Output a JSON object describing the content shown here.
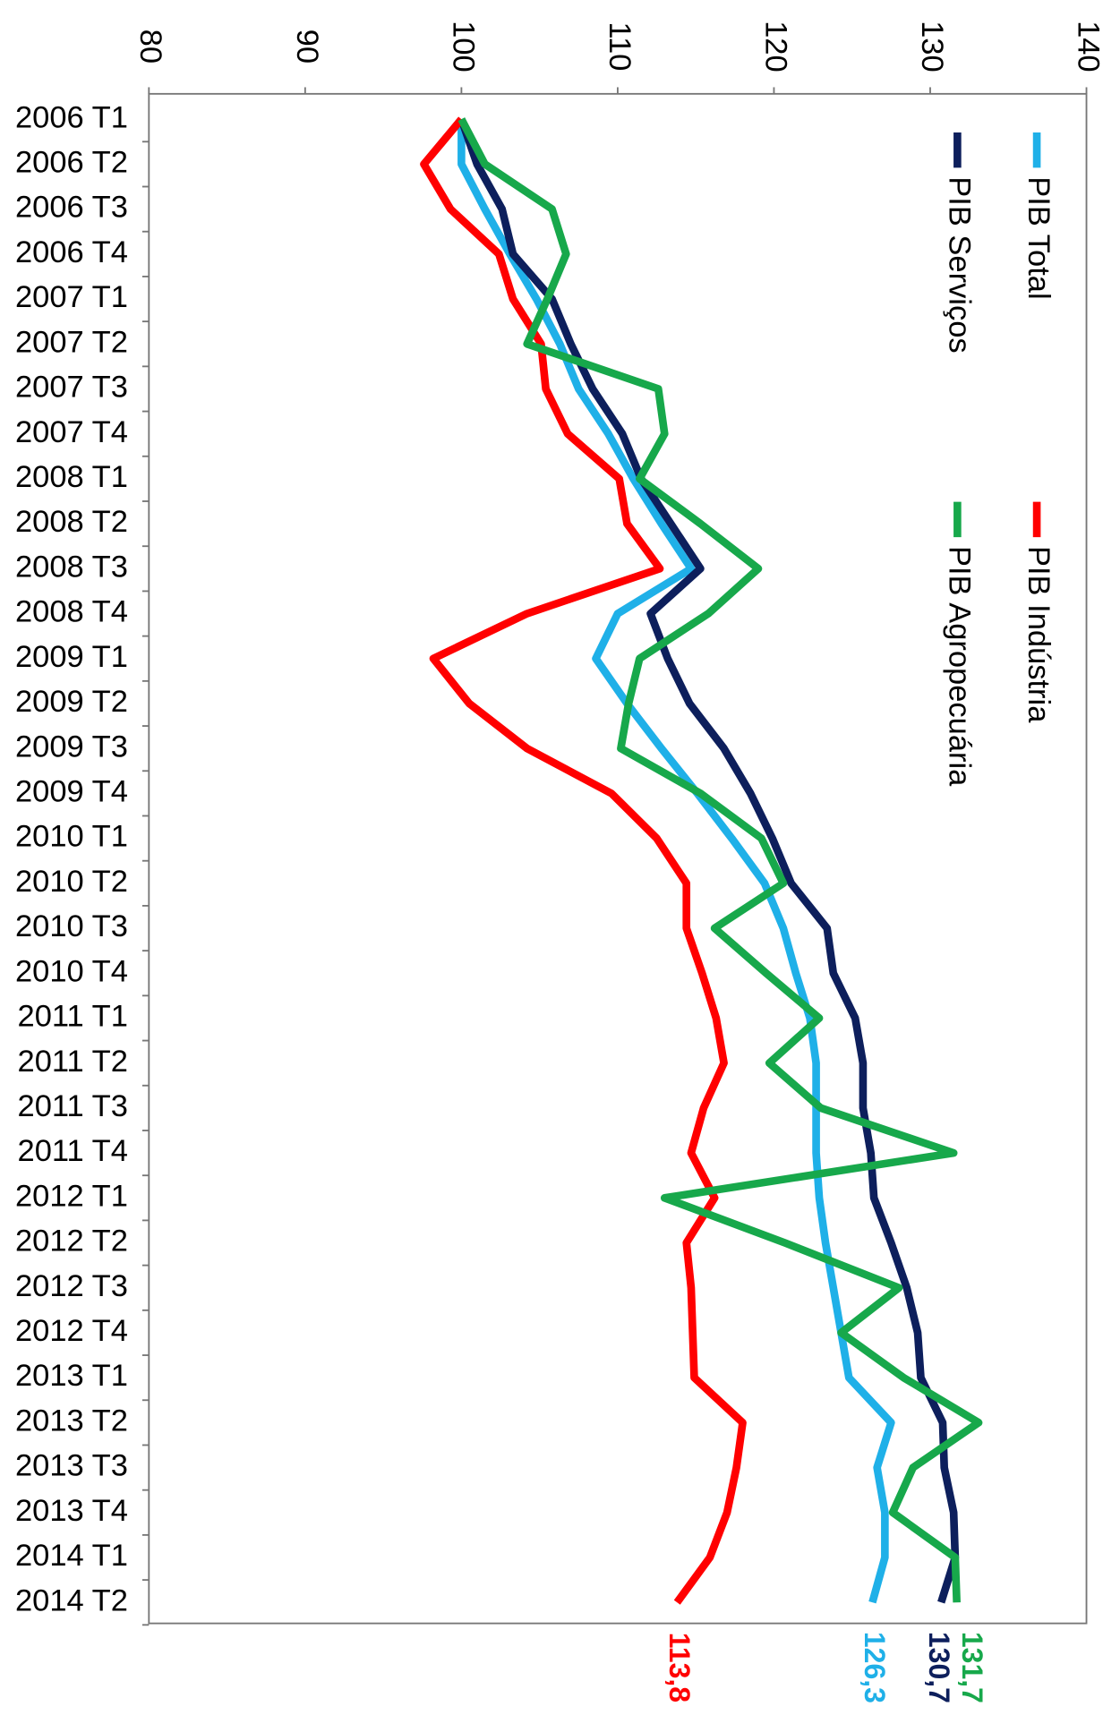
{
  "chart_data": {
    "type": "line",
    "orientation": "horizontal",
    "categories": [
      "2006 T1",
      "2006 T2",
      "2006 T3",
      "2006 T4",
      "2007 T1",
      "2007 T2",
      "2007 T3",
      "2007 T4",
      "2008 T1",
      "2008 T2",
      "2008 T3",
      "2008 T4",
      "2009 T1",
      "2009 T2",
      "2009 T3",
      "2009 T4",
      "2010 T1",
      "2010 T2",
      "2010 T3",
      "2010 T4",
      "2011 T1",
      "2011 T2",
      "2011 T3",
      "2011 T4",
      "2012 T1",
      "2012 T2",
      "2012 T3",
      "2012 T4",
      "2013 T1",
      "2013 T2",
      "2013 T3",
      "2013 T4",
      "2014 T1",
      "2014 T2"
    ],
    "ylim": [
      80,
      140
    ],
    "yticks": [
      80,
      90,
      100,
      110,
      120,
      130,
      140
    ],
    "grid": false,
    "series": [
      {
        "name": "PIB Total",
        "color": "#1fb0e8",
        "values": [
          100,
          100,
          101.5,
          103.1,
          104.8,
          106.3,
          107.5,
          109.4,
          111.0,
          112.8,
          114.7,
          110.0,
          108.6,
          110.6,
          112.8,
          115.1,
          117.3,
          119.4,
          120.6,
          121.4,
          122.3,
          122.7,
          122.7,
          122.7,
          122.9,
          123.3,
          123.8,
          124.3,
          124.8,
          127.5,
          126.6,
          127.1,
          127.1,
          126.3
        ],
        "value_labels": [
          null,
          null,
          null,
          null,
          null,
          null,
          null,
          null,
          null,
          null,
          null,
          null,
          null,
          null,
          null,
          null,
          null,
          null,
          null,
          null,
          null,
          null,
          null,
          null,
          null,
          null,
          null,
          null,
          null,
          null,
          null,
          null,
          null,
          "126,3"
        ]
      },
      {
        "name": "PIB Serviços",
        "color": "#0d1f5c",
        "values": [
          100,
          101.0,
          102.6,
          103.3,
          105.8,
          107.0,
          108.4,
          110.3,
          111.5,
          113.4,
          115.3,
          112.1,
          113.2,
          114.6,
          116.8,
          118.5,
          119.9,
          121.1,
          123.4,
          123.8,
          125.2,
          125.7,
          125.7,
          126.2,
          126.4,
          127.5,
          128.5,
          129.2,
          129.4,
          130.8,
          130.9,
          131.5,
          131.6,
          130.7
        ],
        "value_labels": [
          null,
          null,
          null,
          null,
          null,
          null,
          null,
          null,
          null,
          null,
          null,
          null,
          null,
          null,
          null,
          null,
          null,
          null,
          null,
          null,
          null,
          null,
          null,
          null,
          null,
          null,
          null,
          null,
          null,
          null,
          null,
          null,
          null,
          "130,7"
        ]
      },
      {
        "name": "PIB Indústria",
        "color": "#ff0000",
        "values": [
          100,
          97.6,
          99.3,
          102.4,
          103.3,
          105.1,
          105.4,
          106.8,
          110.1,
          110.6,
          112.7,
          104.2,
          98.2,
          100.5,
          104.2,
          109.6,
          112.5,
          114.4,
          114.4,
          115.4,
          116.3,
          116.8,
          115.5,
          114.7,
          116.2,
          114.4,
          114.7,
          114.8,
          114.9,
          118.0,
          117.6,
          117.0,
          115.9,
          113.8
        ],
        "value_labels": [
          null,
          null,
          null,
          null,
          null,
          null,
          null,
          null,
          null,
          null,
          null,
          null,
          null,
          null,
          null,
          null,
          null,
          null,
          null,
          null,
          null,
          null,
          null,
          null,
          null,
          null,
          null,
          null,
          null,
          null,
          null,
          null,
          null,
          "113,8"
        ]
      },
      {
        "name": "PIB Agropecuária",
        "color": "#17a84b",
        "values": [
          100,
          101.5,
          105.8,
          106.7,
          105.5,
          104.2,
          112.6,
          113.0,
          111.4,
          115.3,
          119.0,
          115.8,
          111.4,
          110.7,
          110.2,
          115.3,
          119.2,
          120.6,
          116.2,
          119.5,
          122.9,
          119.7,
          123.0,
          131.5,
          113.0,
          120.7,
          128.0,
          124.3,
          128.3,
          133.1,
          128.9,
          127.6,
          131.6,
          131.7
        ],
        "value_labels": [
          null,
          null,
          null,
          null,
          null,
          null,
          null,
          null,
          null,
          null,
          null,
          null,
          null,
          null,
          null,
          null,
          null,
          null,
          null,
          null,
          null,
          null,
          null,
          null,
          null,
          null,
          null,
          null,
          null,
          null,
          null,
          null,
          null,
          "131,7"
        ]
      }
    ]
  }
}
